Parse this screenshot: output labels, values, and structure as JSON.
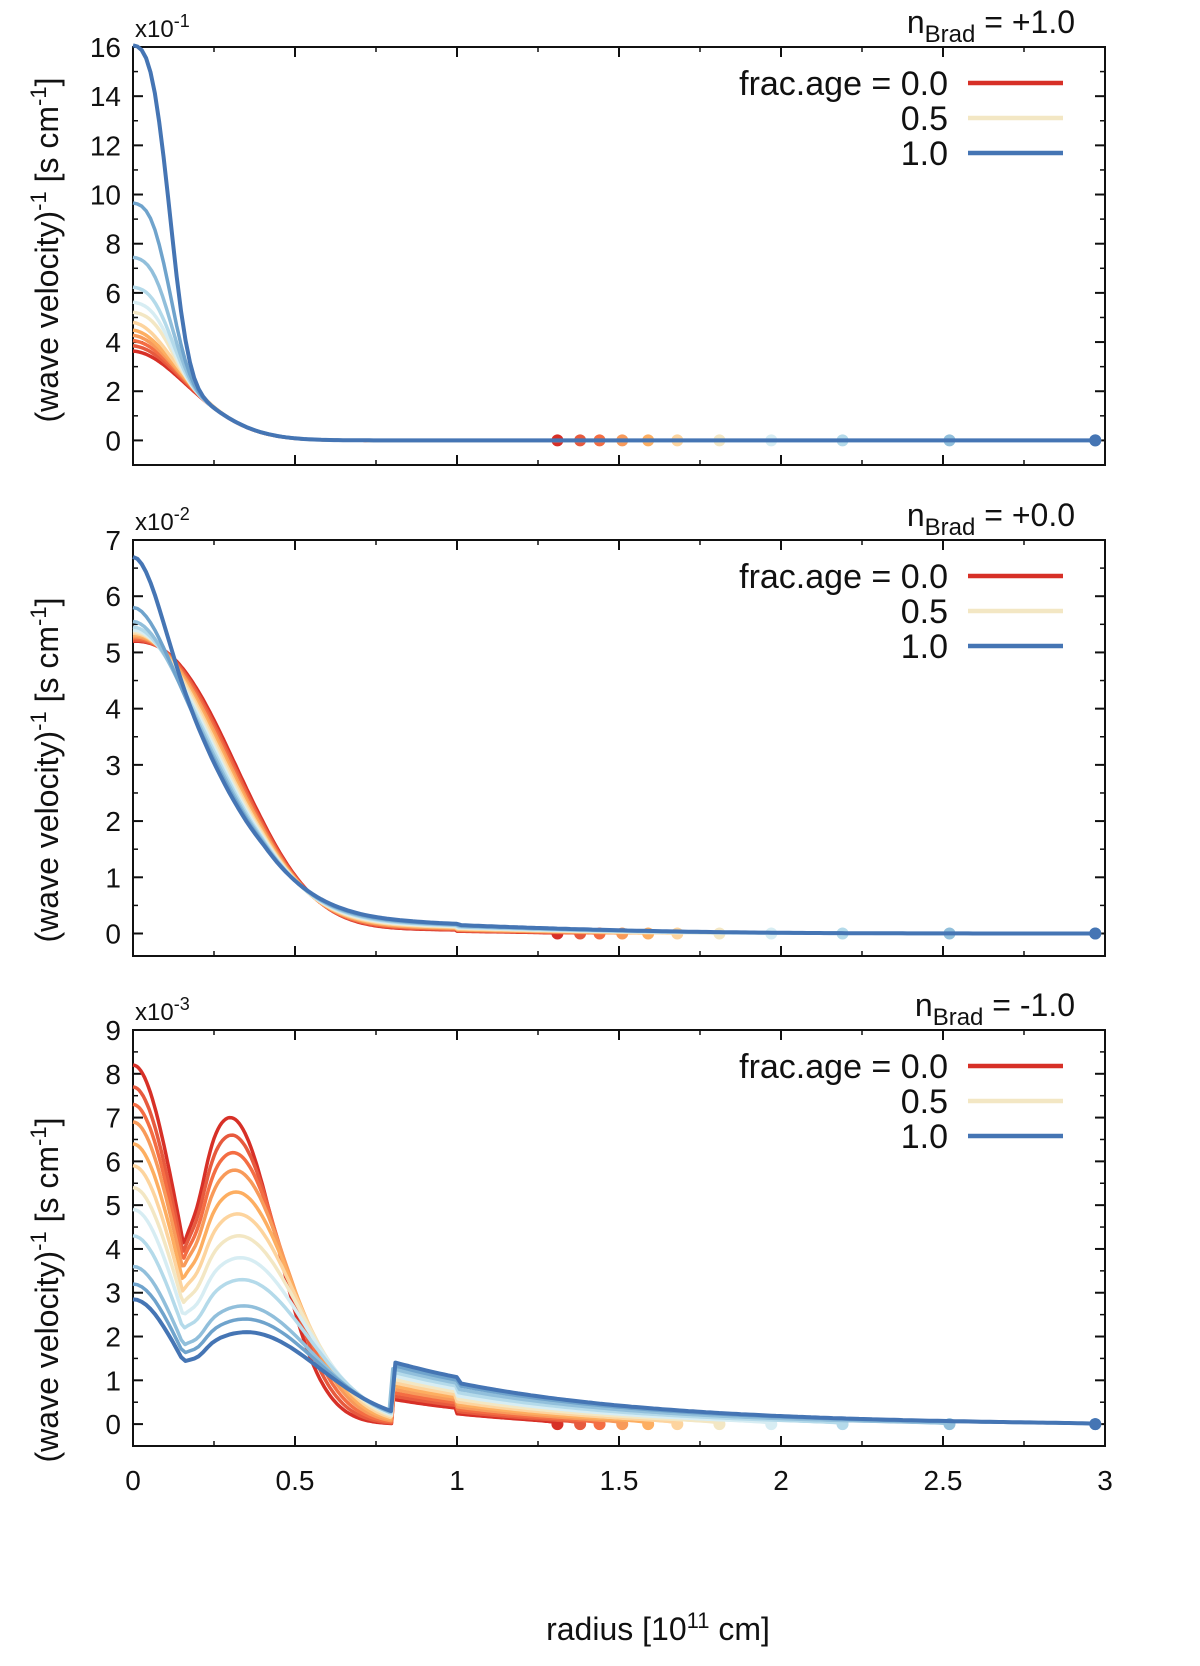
{
  "figure": {
    "xlabel": "radius [10",
    "xlabel_exp": "11",
    "xlabel_unit": " cm]",
    "ylabel": "(wave velocity)",
    "ylabel_exp": "-1",
    "ylabel_unit": " [s cm",
    "ylabel_unit_exp": "-1",
    "ylabel_close": "]"
  },
  "legend": {
    "prefix": "frac.age = ",
    "entries": [
      {
        "label": "0.0",
        "color": "#d73027"
      },
      {
        "label": "0.5",
        "color": "#f3e7c4"
      },
      {
        "label": "1.0",
        "color": "#4575b4"
      }
    ]
  },
  "palette": [
    "#d73027",
    "#e75a3e",
    "#f46d43",
    "#f89a5a",
    "#fdae61",
    "#fdd49e",
    "#f3e7c4",
    "#d7edf3",
    "#b4daea",
    "#91bfdb",
    "#6fa3cc",
    "#4575b4"
  ],
  "chart_data": [
    {
      "type": "line",
      "title": "n_Brad = +1.0",
      "annotation": {
        "n": "n",
        "sub": "Brad",
        "value": " = +1.0"
      },
      "scale_label": {
        "base": "x10",
        "exp": "-1"
      },
      "ylim": [
        -1,
        16
      ],
      "xlim": [
        0,
        3
      ],
      "yticks": [
        "0",
        "2",
        "4",
        "6",
        "8",
        "10",
        "12",
        "14",
        "16"
      ],
      "xticks": [
        "0",
        "0.5",
        "1",
        "1.5",
        "2",
        "2.5",
        "3"
      ],
      "series_count": 12,
      "series_note": "12 curves colored from frac.age 0.0 (red) to 1.0 (blue)",
      "center_values": [
        3.5,
        3.7,
        3.9,
        4.1,
        4.3,
        4.6,
        5.0,
        5.4,
        6.0,
        7.2,
        9.4,
        15.8
      ],
      "surface_radius": [
        1.31,
        1.38,
        1.44,
        1.51,
        1.59,
        1.68,
        1.81,
        1.97,
        2.19,
        2.52,
        2.97,
        2.97
      ]
    },
    {
      "type": "line",
      "title": "n_Brad = +0.0",
      "annotation": {
        "n": "n",
        "sub": "Brad",
        "value": " = +0.0"
      },
      "scale_label": {
        "base": "x10",
        "exp": "-2"
      },
      "ylim": [
        -0.4,
        7
      ],
      "xlim": [
        0,
        3
      ],
      "yticks": [
        "0",
        "1",
        "2",
        "3",
        "4",
        "5",
        "6",
        "7"
      ],
      "xticks": [
        "0",
        "0.5",
        "1",
        "1.5",
        "2",
        "2.5",
        "3"
      ],
      "series_count": 12,
      "center_values": [
        5.2,
        5.22,
        5.25,
        5.28,
        5.31,
        5.34,
        5.37,
        5.4,
        5.45,
        5.55,
        5.8,
        6.7
      ],
      "surface_radius": [
        1.31,
        1.38,
        1.44,
        1.51,
        1.59,
        1.68,
        1.81,
        1.97,
        2.19,
        2.52,
        2.97,
        2.97
      ]
    },
    {
      "type": "line",
      "title": "n_Brad = -1.0",
      "annotation": {
        "n": "n",
        "sub": "Brad",
        "value": " = -1.0"
      },
      "scale_label": {
        "base": "x10",
        "exp": "-3"
      },
      "ylim": [
        -0.5,
        9
      ],
      "xlim": [
        0,
        3
      ],
      "yticks": [
        "0",
        "1",
        "2",
        "3",
        "4",
        "5",
        "6",
        "7",
        "8",
        "9"
      ],
      "xticks": [
        "0",
        "0.5",
        "1",
        "1.5",
        "2",
        "2.5",
        "3"
      ],
      "series_count": 12,
      "center_values": [
        8.2,
        7.7,
        7.3,
        6.9,
        6.4,
        5.9,
        5.4,
        4.9,
        4.3,
        3.6,
        3.2,
        2.85
      ],
      "peak_values": [
        7.0,
        6.6,
        6.2,
        5.8,
        5.3,
        4.8,
        4.3,
        3.8,
        3.3,
        2.7,
        2.4,
        2.1
      ],
      "surface_radius": [
        1.31,
        1.38,
        1.44,
        1.51,
        1.59,
        1.68,
        1.81,
        1.97,
        2.19,
        2.52,
        2.97,
        2.97
      ]
    }
  ]
}
